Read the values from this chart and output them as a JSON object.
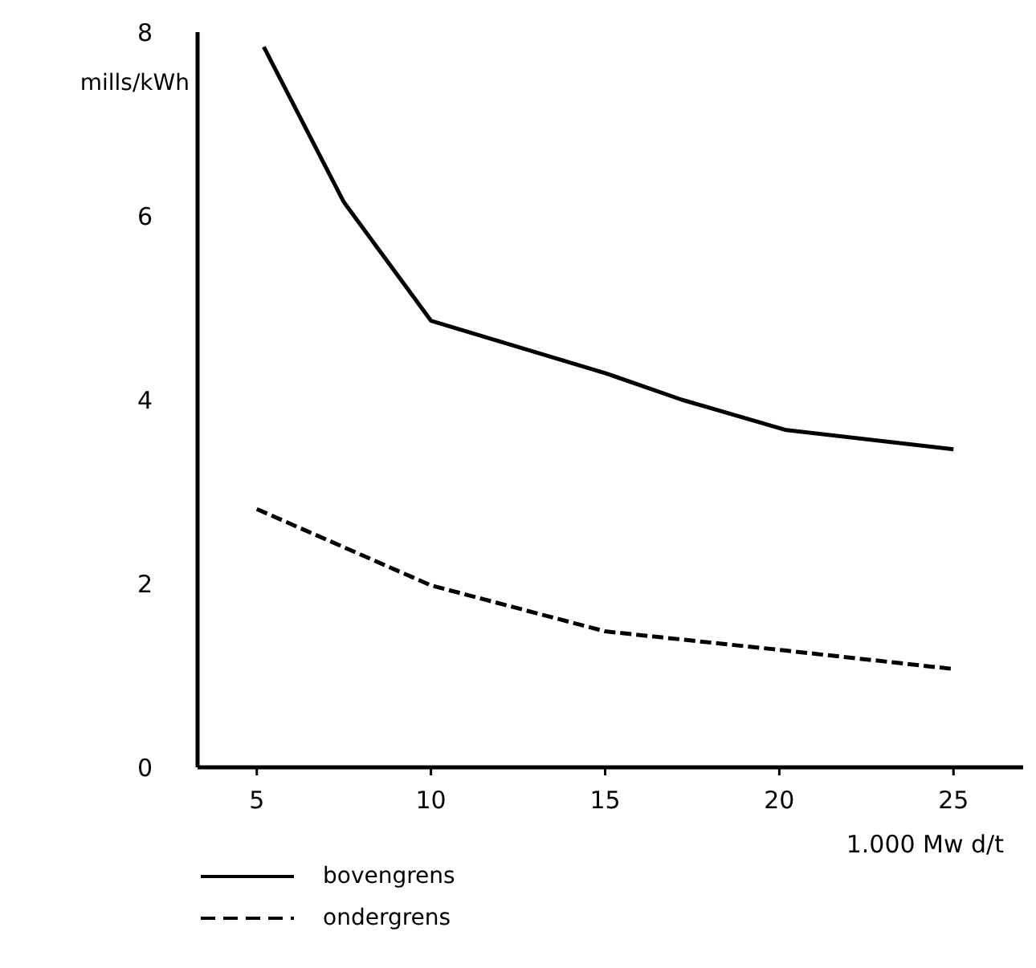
{
  "chart_data": {
    "type": "line",
    "xlabel": "1.000 Mw d/t",
    "ylabel": "mills/kWh",
    "xlim": [
      3.3,
      27
    ],
    "xticks": [
      5,
      10,
      15,
      20,
      25
    ],
    "ylim": [
      0,
      8
    ],
    "yticks": [
      0,
      2,
      4,
      6,
      8
    ],
    "grid": false,
    "legend": "bottom left",
    "marker": "none",
    "series": [
      {
        "name": "bovengrens",
        "color": "#000000",
        "line_style": "solid",
        "x": [
          5.2,
          7.5,
          10,
          15,
          17.2,
          20.2,
          25
        ],
        "values": [
          7.84,
          6.15,
          4.86,
          4.29,
          4.0,
          3.67,
          3.46
        ]
      },
      {
        "name": "ondergrens",
        "color": "#000000",
        "line_style": "dashed",
        "x": [
          5,
          10,
          15,
          20.2,
          25
        ],
        "values": [
          2.81,
          1.98,
          1.48,
          1.27,
          1.07
        ]
      }
    ]
  }
}
